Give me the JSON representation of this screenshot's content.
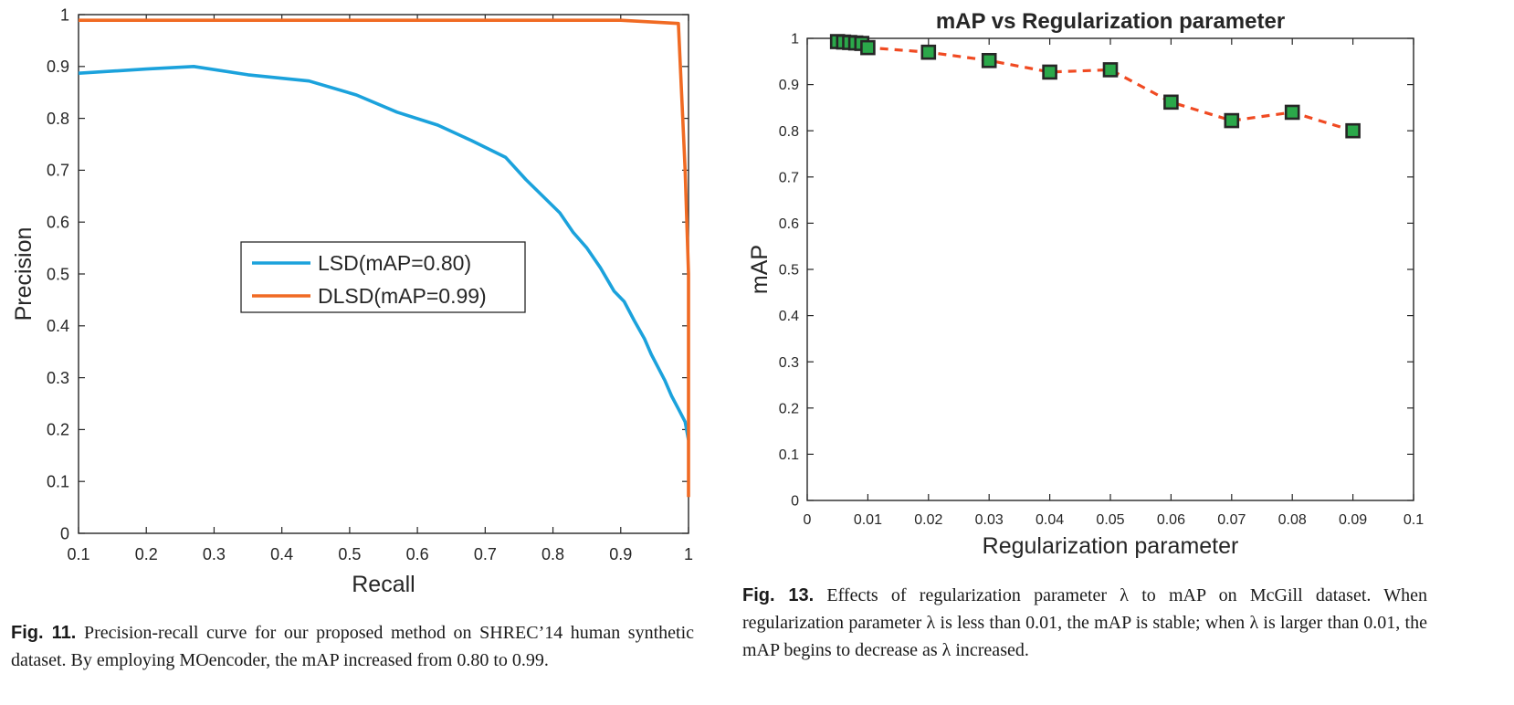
{
  "chart_data": [
    {
      "type": "line",
      "title": "",
      "xlabel": "Recall",
      "ylabel": "Precision",
      "xlim": [
        0.1,
        1
      ],
      "ylim": [
        0,
        1
      ],
      "xticks": [
        "0.1",
        "0.2",
        "0.3",
        "0.4",
        "0.5",
        "0.6",
        "0.7",
        "0.8",
        "0.9",
        "1"
      ],
      "yticks": [
        "0",
        "0.1",
        "0.2",
        "0.3",
        "0.4",
        "0.5",
        "0.6",
        "0.7",
        "0.8",
        "0.9",
        "1"
      ],
      "grid": false,
      "legend": "center-left",
      "series": [
        {
          "name": "LSD(mAP=0.80)",
          "color": "#1ba2dc",
          "points": [
            [
              0.1,
              0.887
            ],
            [
              0.2,
              0.895
            ],
            [
              0.27,
              0.9
            ],
            [
              0.35,
              0.884
            ],
            [
              0.44,
              0.872
            ],
            [
              0.51,
              0.845
            ],
            [
              0.57,
              0.812
            ],
            [
              0.63,
              0.787
            ],
            [
              0.68,
              0.757
            ],
            [
              0.73,
              0.725
            ],
            [
              0.76,
              0.682
            ],
            [
              0.81,
              0.618
            ],
            [
              0.83,
              0.58
            ],
            [
              0.85,
              0.55
            ],
            [
              0.87,
              0.512
            ],
            [
              0.89,
              0.467
            ],
            [
              0.905,
              0.447
            ],
            [
              0.92,
              0.41
            ],
            [
              0.935,
              0.375
            ],
            [
              0.945,
              0.345
            ],
            [
              0.955,
              0.32
            ],
            [
              0.965,
              0.295
            ],
            [
              0.975,
              0.265
            ],
            [
              0.985,
              0.24
            ],
            [
              0.995,
              0.215
            ],
            [
              1.0,
              0.18
            ]
          ]
        },
        {
          "name": "DLSD(mAP=0.99)",
          "color": "#f06a23",
          "points": [
            [
              0.1,
              0.989
            ],
            [
              0.9,
              0.989
            ],
            [
              0.985,
              0.983
            ],
            [
              0.995,
              0.7
            ],
            [
              1.0,
              0.5
            ],
            [
              1.0,
              0.07
            ]
          ]
        }
      ]
    },
    {
      "type": "line",
      "title": "mAP vs Regularization parameter",
      "xlabel": "Regularization parameter",
      "ylabel": "mAP",
      "xlim": [
        0,
        0.1
      ],
      "ylim": [
        0,
        1
      ],
      "xticks": [
        "0",
        "0.01",
        "0.02",
        "0.03",
        "0.04",
        "0.05",
        "0.06",
        "0.07",
        "0.08",
        "0.09",
        "0.1"
      ],
      "yticks": [
        "0",
        "0.1",
        "0.2",
        "0.3",
        "0.4",
        "0.5",
        "0.6",
        "0.7",
        "0.8",
        "0.9",
        "1"
      ],
      "grid": false,
      "series": [
        {
          "line_color": "#f04a22",
          "marker_color": "#2ba84a",
          "marker": "square",
          "x": [
            0.005,
            0.006,
            0.007,
            0.008,
            0.009,
            0.01,
            0.02,
            0.03,
            0.04,
            0.05,
            0.06,
            0.07,
            0.08,
            0.09
          ],
          "y": [
            0.993,
            0.992,
            0.991,
            0.99,
            0.989,
            0.98,
            0.97,
            0.952,
            0.927,
            0.932,
            0.862,
            0.822,
            0.84,
            0.8
          ]
        }
      ]
    }
  ],
  "captions": {
    "fig11_label": "Fig. 11.",
    "fig11_text": "Precision-recall curve for our proposed method on SHREC’14 human synthetic dataset. By employing MOencoder, the mAP increased from 0.80 to 0.99.",
    "fig13_label": "Fig. 13.",
    "fig13_text": "Effects of regularization parameter λ to mAP on McGill dataset. When regularization parameter λ is less than 0.01, the mAP is stable; when λ is larger than 0.01, the mAP begins to decrease as λ increased."
  }
}
